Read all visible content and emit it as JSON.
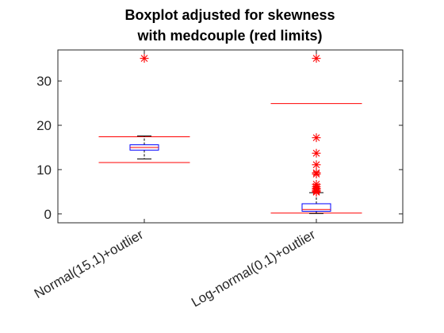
{
  "chart_data": {
    "type": "boxplot",
    "title": [
      "Boxplot adjusted for skewness",
      "with medcouple (red limits)"
    ],
    "xlabel": "",
    "ylabel": "",
    "ylim": [
      -2,
      37
    ],
    "yticks": [
      0,
      10,
      20,
      30
    ],
    "grid": false,
    "legend": "none",
    "categories": [
      "Normal(15,1)+outlier",
      "Log-normal(0,1)+outlier"
    ],
    "boxes": [
      {
        "category": "Normal(15,1)+outlier",
        "q1": 14.4,
        "median": 15.0,
        "q3": 15.6,
        "whisker_low": 12.4,
        "whisker_high": 17.6,
        "adjusted_lower": 11.6,
        "adjusted_upper": 17.4,
        "outliers": [
          35.1
        ]
      },
      {
        "category": "Log-normal(0,1)+outlier",
        "q1": 0.6,
        "median": 1.0,
        "q3": 2.3,
        "whisker_low": 0.1,
        "whisker_high": 4.8,
        "adjusted_lower": 0.2,
        "adjusted_upper": 24.9,
        "outliers": [
          35.1,
          17.2,
          13.7,
          11.1,
          9.3,
          9.0,
          6.7,
          6.2,
          5.8,
          5.5,
          5.2,
          5.0,
          4.9
        ]
      }
    ],
    "colors": {
      "box": "#0000ff",
      "median": "#ff0000",
      "whisker": "#000000",
      "outlier": "#ff0000",
      "limit": "#ff0000",
      "axes": "#262626"
    }
  }
}
